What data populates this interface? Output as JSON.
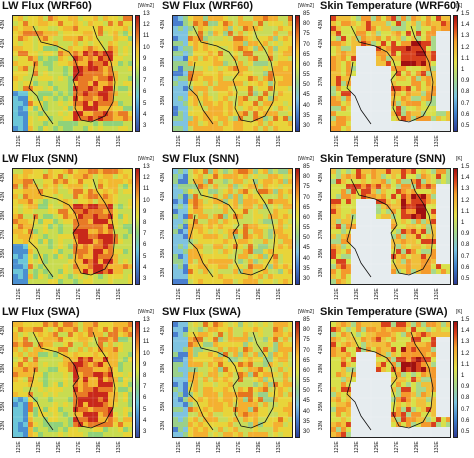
{
  "panels": [
    {
      "title": "LW Flux (WRF60)",
      "unit": "[W/m2]",
      "scale": "lw",
      "ticks": [
        "13",
        "12",
        "11",
        "10",
        "9",
        "8",
        "7",
        "6",
        "5",
        "4",
        "3"
      ]
    },
    {
      "title": "SW Flux (WRF60)",
      "unit": "[W/m2]",
      "scale": "sw",
      "ticks": [
        "85",
        "80",
        "75",
        "70",
        "65",
        "60",
        "55",
        "50",
        "45",
        "40",
        "35",
        "30"
      ]
    },
    {
      "title": "Skin Temperature (WRF60)",
      "unit": "[K]",
      "scale": "sk",
      "ticks": [
        "1.5",
        "1.4",
        "1.3",
        "1.2",
        "1.1",
        "1",
        "0.9",
        "0.8",
        "0.7",
        "0.6",
        "0.5"
      ]
    },
    {
      "title": "LW Flux (SNN)",
      "unit": "[W/m2]",
      "scale": "lw",
      "ticks": [
        "13",
        "12",
        "11",
        "10",
        "9",
        "8",
        "7",
        "6",
        "5",
        "4",
        "3"
      ]
    },
    {
      "title": "SW Flux (SNN)",
      "unit": "[W/m2]",
      "scale": "sw",
      "ticks": [
        "85",
        "80",
        "75",
        "70",
        "65",
        "60",
        "55",
        "50",
        "45",
        "40",
        "35",
        "30"
      ]
    },
    {
      "title": "Skin Temperature (SNN)",
      "unit": "[K]",
      "scale": "sk",
      "ticks": [
        "1.5",
        "1.4",
        "1.3",
        "1.2",
        "1.1",
        "1",
        "0.9",
        "0.8",
        "0.7",
        "0.6",
        "0.5"
      ]
    },
    {
      "title": "LW Flux (SWA)",
      "unit": "[W/m2]",
      "scale": "lw",
      "ticks": [
        "13",
        "12",
        "11",
        "10",
        "9",
        "8",
        "7",
        "6",
        "5",
        "4",
        "3"
      ]
    },
    {
      "title": "SW Flux (SWA)",
      "unit": "[W/m2]",
      "scale": "sw",
      "ticks": [
        "85",
        "80",
        "75",
        "70",
        "65",
        "60",
        "55",
        "50",
        "45",
        "40",
        "35",
        "30"
      ]
    },
    {
      "title": "Skin Temperature (SWA)",
      "unit": "[K]",
      "scale": "sk",
      "ticks": [
        "1.5",
        "1.4",
        "1.3",
        "1.2",
        "1.1",
        "1",
        "0.9",
        "0.8",
        "0.7",
        "0.6",
        "0.5"
      ]
    }
  ],
  "lat_labels": [
    "43N",
    "41N",
    "39N",
    "37N",
    "35N",
    "33N"
  ],
  "lon_labels": [
    "121E",
    "123E",
    "125E",
    "127E",
    "129E",
    "131E"
  ],
  "colors": {
    "ocean_light": "#e6ecef",
    "land_low": "#7ccbd4",
    "land_mid": "#a8d06a",
    "land_high": "#f0c23a",
    "land_peak": "#c8281a",
    "coast": "#111111"
  }
}
